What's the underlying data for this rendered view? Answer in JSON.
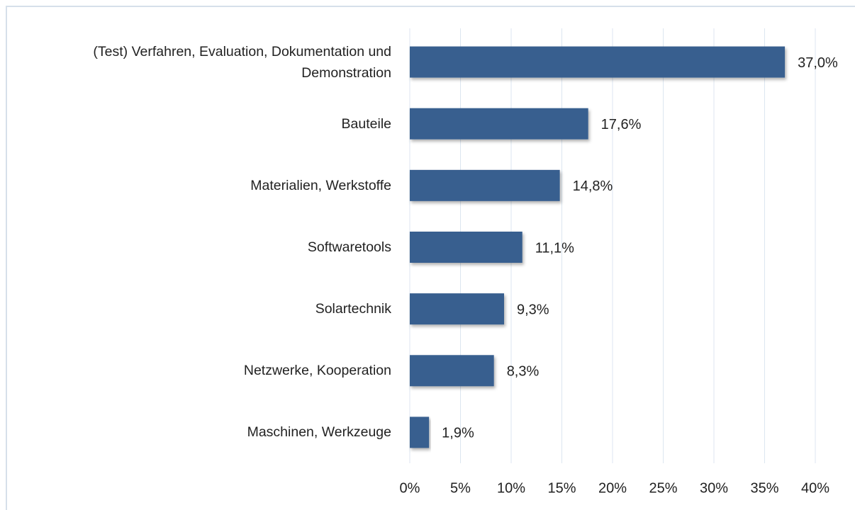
{
  "chart_data": {
    "type": "bar",
    "orientation": "horizontal",
    "categories": [
      "(Test) Verfahren, Evaluation, Dokumentation und Demonstration",
      "Bauteile",
      "Materialien, Werkstoffe",
      "Softwaretools",
      "Solartechnik",
      "Netzwerke, Kooperation",
      "Maschinen, Werkzeuge"
    ],
    "values": [
      37.0,
      17.6,
      14.8,
      11.1,
      9.3,
      8.3,
      1.9
    ],
    "value_labels": [
      "37,0%",
      "17,6%",
      "14,8%",
      "11,1%",
      "9,3%",
      "8,3%",
      "1,9%"
    ],
    "color": "#375e8f",
    "xlim": [
      0,
      40
    ],
    "xticks": [
      {
        "value": 0,
        "label": "0%"
      },
      {
        "value": 5,
        "label": "5%"
      },
      {
        "value": 10,
        "label": "10%"
      },
      {
        "value": 15,
        "label": "15%"
      },
      {
        "value": 20,
        "label": "20%"
      },
      {
        "value": 25,
        "label": "25%"
      },
      {
        "value": 30,
        "label": "30%"
      },
      {
        "value": 35,
        "label": "35%"
      },
      {
        "value": 40,
        "label": "40%"
      }
    ],
    "grid": true
  }
}
